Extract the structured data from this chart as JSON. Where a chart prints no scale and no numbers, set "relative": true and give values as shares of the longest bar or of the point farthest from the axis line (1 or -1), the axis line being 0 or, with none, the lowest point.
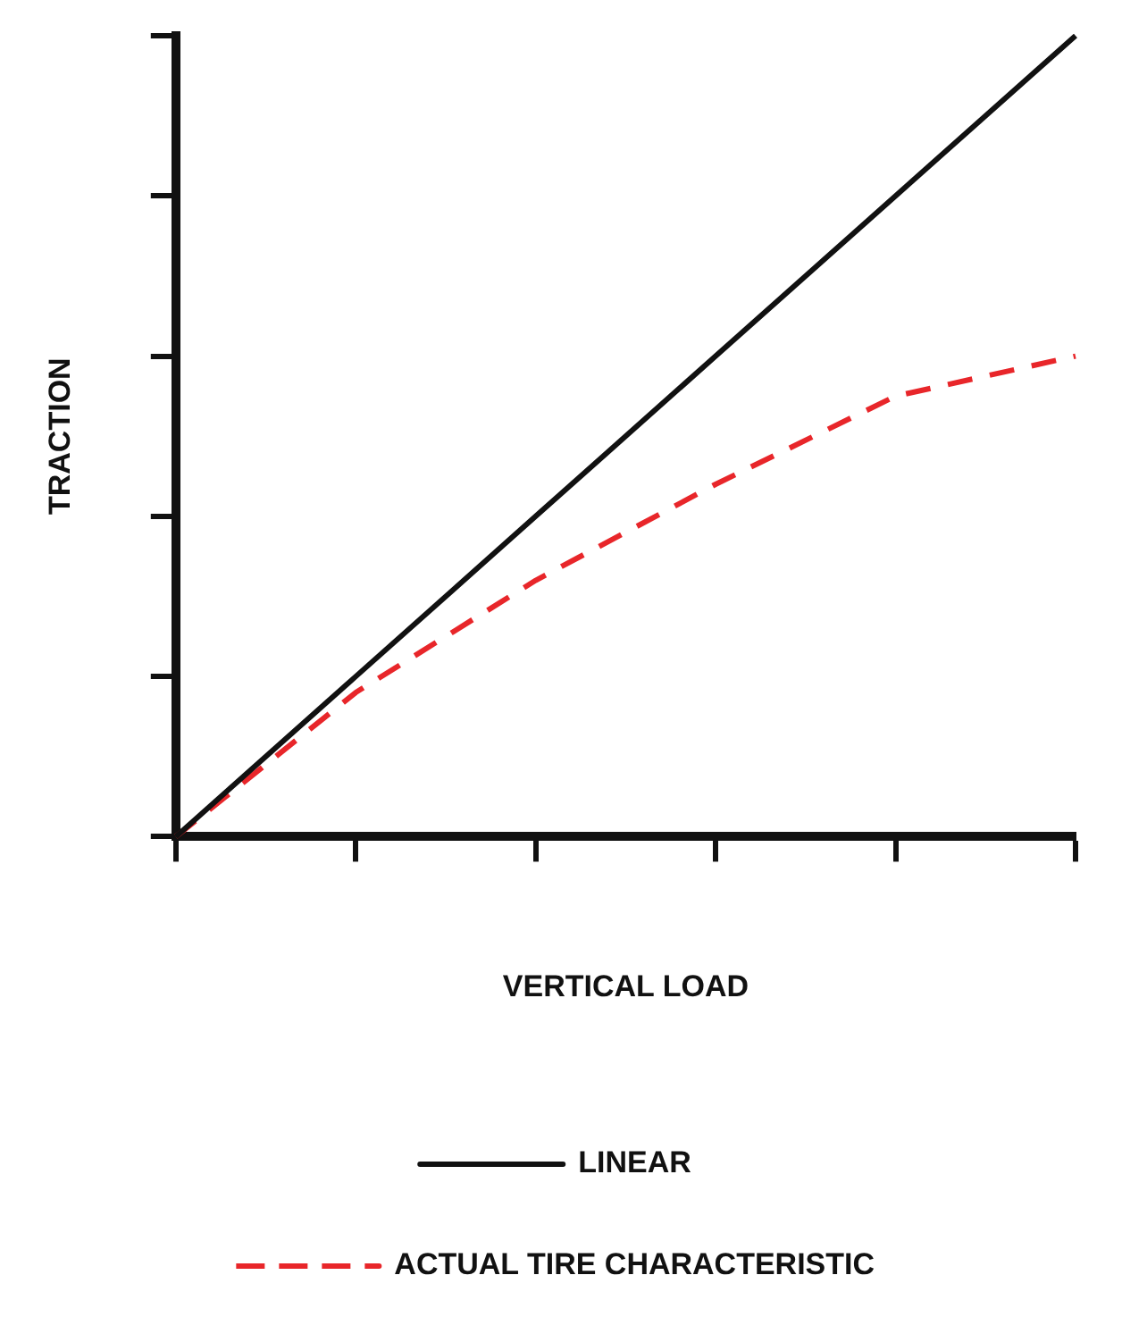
{
  "chart_data": {
    "type": "line",
    "relative": true,
    "xlabel": "VERTICAL LOAD",
    "ylabel": "TRACTION",
    "categories": [
      null,
      null,
      null,
      null,
      null,
      null
    ],
    "series": [
      {
        "name": "LINEAR",
        "color": "#111111",
        "values": [
          0,
          0.2,
          0.4,
          0.6,
          0.8,
          1
        ],
        "line_style": "solid"
      },
      {
        "name": "ACTUAL TIRE CHARACTERISTIC",
        "color": "#e8262a",
        "values": [
          0,
          0.18,
          0.32,
          0.44,
          0.55,
          0.6
        ],
        "line_style": "dashed"
      }
    ],
    "legend": "bottom",
    "grid": false,
    "marker": "none"
  }
}
